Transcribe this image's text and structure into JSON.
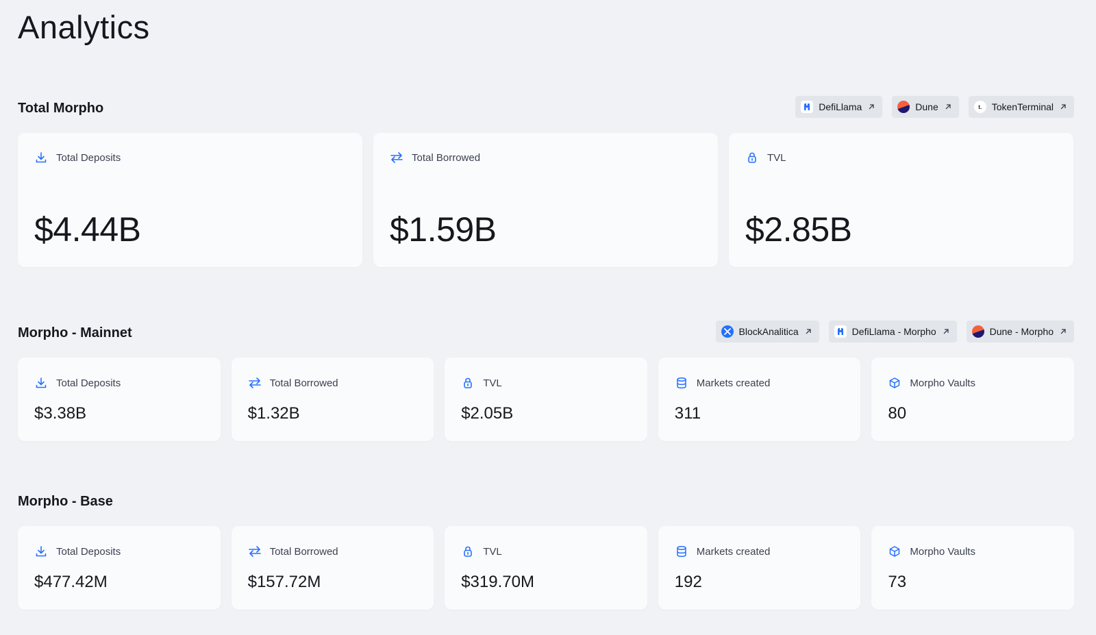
{
  "page": {
    "title": "Analytics"
  },
  "total": {
    "title": "Total Morpho",
    "links": [
      {
        "label": "DefiLlama",
        "logo": "defillama-logo"
      },
      {
        "label": "Dune",
        "logo": "dune-logo"
      },
      {
        "label": "TokenTerminal",
        "logo": "tokenterminal-logo",
        "logo_text": "t."
      }
    ],
    "cards": [
      {
        "label": "Total Deposits",
        "value": "$4.44B",
        "icon": "download-icon"
      },
      {
        "label": "Total Borrowed",
        "value": "$1.59B",
        "icon": "swap-icon"
      },
      {
        "label": "TVL",
        "value": "$2.85B",
        "icon": "lock-icon"
      }
    ]
  },
  "mainnet": {
    "title": "Morpho - Mainnet",
    "links": [
      {
        "label": "BlockAnalitica",
        "logo": "blockanalitica-logo"
      },
      {
        "label": "DefiLlama - Morpho",
        "logo": "defillama-logo"
      },
      {
        "label": "Dune - Morpho",
        "logo": "dune-logo"
      }
    ],
    "cards": [
      {
        "label": "Total Deposits",
        "value": "$3.38B",
        "icon": "download-icon"
      },
      {
        "label": "Total Borrowed",
        "value": "$1.32B",
        "icon": "swap-icon"
      },
      {
        "label": "TVL",
        "value": "$2.05B",
        "icon": "lock-icon"
      },
      {
        "label": "Markets created",
        "value": "311",
        "icon": "database-icon"
      },
      {
        "label": "Morpho Vaults",
        "value": "80",
        "icon": "cube-icon"
      }
    ]
  },
  "base": {
    "title": "Morpho - Base",
    "cards": [
      {
        "label": "Total Deposits",
        "value": "$477.42M",
        "icon": "download-icon"
      },
      {
        "label": "Total Borrowed",
        "value": "$157.72M",
        "icon": "swap-icon"
      },
      {
        "label": "TVL",
        "value": "$319.70M",
        "icon": "lock-icon"
      },
      {
        "label": "Markets created",
        "value": "192",
        "icon": "database-icon"
      },
      {
        "label": "Morpho Vaults",
        "value": "73",
        "icon": "cube-icon"
      }
    ]
  },
  "colors": {
    "accent": "#2470ff",
    "background": "#f0f2f5",
    "card": "#fafbfd",
    "chip": "#e2e5ea"
  }
}
